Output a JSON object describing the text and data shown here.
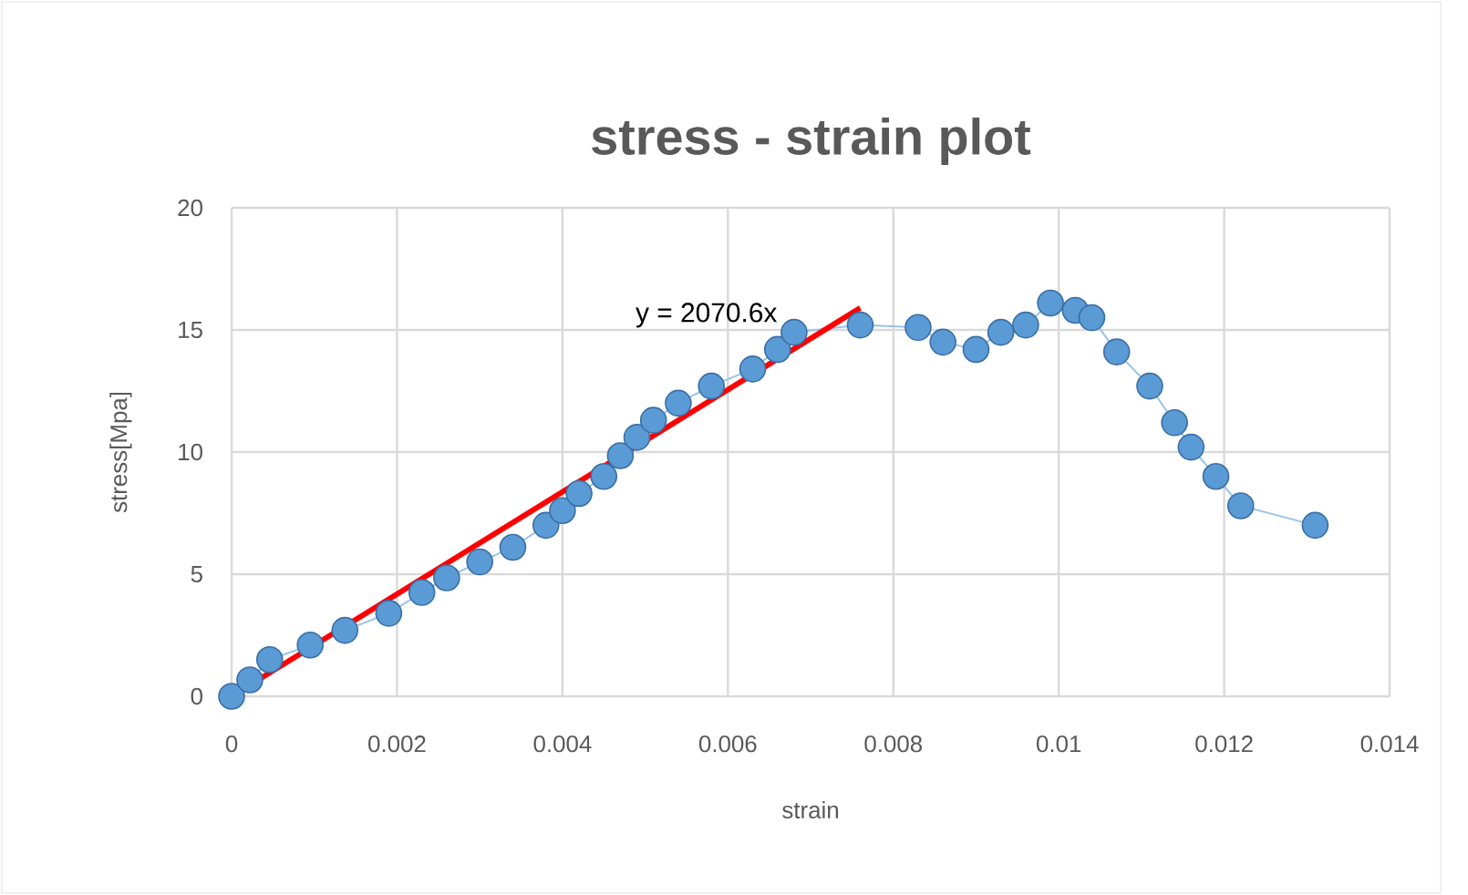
{
  "chart_data": {
    "type": "line",
    "title": "stress - strain plot",
    "xlabel": "strain",
    "ylabel": "stress[Mpa]",
    "xlim": [
      0,
      0.014
    ],
    "ylim": [
      0,
      20
    ],
    "xticks": [
      0,
      0.002,
      0.004,
      0.006,
      0.008,
      0.01,
      0.012,
      0.014
    ],
    "yticks": [
      0,
      5,
      10,
      15,
      20
    ],
    "grid": true,
    "annotations": [
      "y = 2070.6x"
    ],
    "series": [
      {
        "color": "#5b9bd5",
        "marker": "circle",
        "x": [
          0,
          0.00022,
          0.00046,
          0.00095,
          0.00137,
          0.0019,
          0.0023,
          0.0026,
          0.003,
          0.0034,
          0.0038,
          0.004,
          0.0042,
          0.0045,
          0.0047,
          0.0049,
          0.0051,
          0.0054,
          0.0058,
          0.0063,
          0.0066,
          0.0068,
          0.0076,
          0.0083,
          0.0086,
          0.009,
          0.0093,
          0.0096,
          0.0099,
          0.0102,
          0.0104,
          0.0107,
          0.0111,
          0.0114,
          0.0116,
          0.0119,
          0.0122,
          0.0131
        ],
        "values": [
          0,
          0.67,
          1.5,
          2.1,
          2.7,
          3.4,
          4.25,
          4.85,
          5.5,
          6.1,
          7.0,
          7.6,
          8.3,
          9.0,
          9.85,
          10.6,
          11.3,
          12.0,
          12.7,
          13.4,
          14.2,
          14.9,
          15.2,
          15.1,
          14.5,
          14.2,
          14.9,
          15.2,
          16.1,
          15.8,
          15.5,
          14.1,
          12.7,
          11.2,
          10.2,
          9.0,
          7.8,
          7.0
        ]
      },
      {
        "color": "#ff0000",
        "marker": "none",
        "x": [
          0,
          0.0076
        ],
        "values": [
          0,
          15.9
        ]
      }
    ]
  }
}
